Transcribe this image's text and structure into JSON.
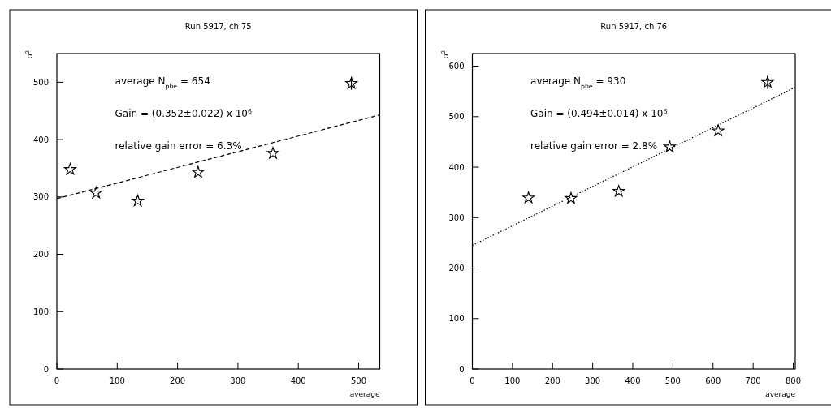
{
  "chart_data": [
    {
      "type": "scatter",
      "title": "Run 5917, ch 75",
      "xlabel": "average",
      "ylabel": "σ$^{2}$",
      "marker": "star",
      "xlim": [
        0,
        535
      ],
      "ylim": [
        0,
        550
      ],
      "xticks": [
        0,
        100,
        200,
        300,
        400,
        500
      ],
      "yticks": [
        0,
        100,
        200,
        300,
        400,
        500
      ],
      "annotations": [
        "average N$_{phe}$ = 654",
        "Gain = (0.352±0.022) x 10$^{6}$",
        "relative gain error = 6.3%"
      ],
      "series": [
        {
          "color": "#000000",
          "x": [
            22,
            65,
            134,
            234,
            358,
            488
          ],
          "values": [
            348,
            307,
            293,
            343,
            376,
            498
          ],
          "errors": [
            null,
            null,
            null,
            null,
            null,
            11
          ]
        },
        {
          "type": "line",
          "color": "#000000",
          "line_style": "dashed",
          "marker": "none",
          "x": [
            0,
            535
          ],
          "values": [
            297,
            443
          ]
        }
      ]
    },
    {
      "type": "scatter",
      "title": "Run 5917, ch 76",
      "xlabel": "average",
      "ylabel": "σ$^{2}$",
      "marker": "star",
      "xlim": [
        0,
        805
      ],
      "ylim": [
        0,
        625
      ],
      "xticks": [
        0,
        100,
        200,
        300,
        400,
        500,
        600,
        700,
        800
      ],
      "yticks": [
        0,
        100,
        200,
        300,
        400,
        500,
        600
      ],
      "annotations": [
        "average N$_{phe}$ = 930",
        "Gain = (0.494±0.014) x 10$^{6}$",
        "relative gain error = 2.8%"
      ],
      "series": [
        {
          "color": "#000000",
          "x": [
            140,
            246,
            365,
            492,
            613,
            736
          ],
          "values": [
            339,
            338,
            352,
            440,
            472,
            568
          ],
          "errors": [
            null,
            null,
            null,
            null,
            null,
            13
          ]
        },
        {
          "type": "line",
          "color": "#000000",
          "line_style": "dotted",
          "marker": "none",
          "x": [
            0,
            805
          ],
          "values": [
            245,
            558
          ]
        }
      ]
    }
  ]
}
